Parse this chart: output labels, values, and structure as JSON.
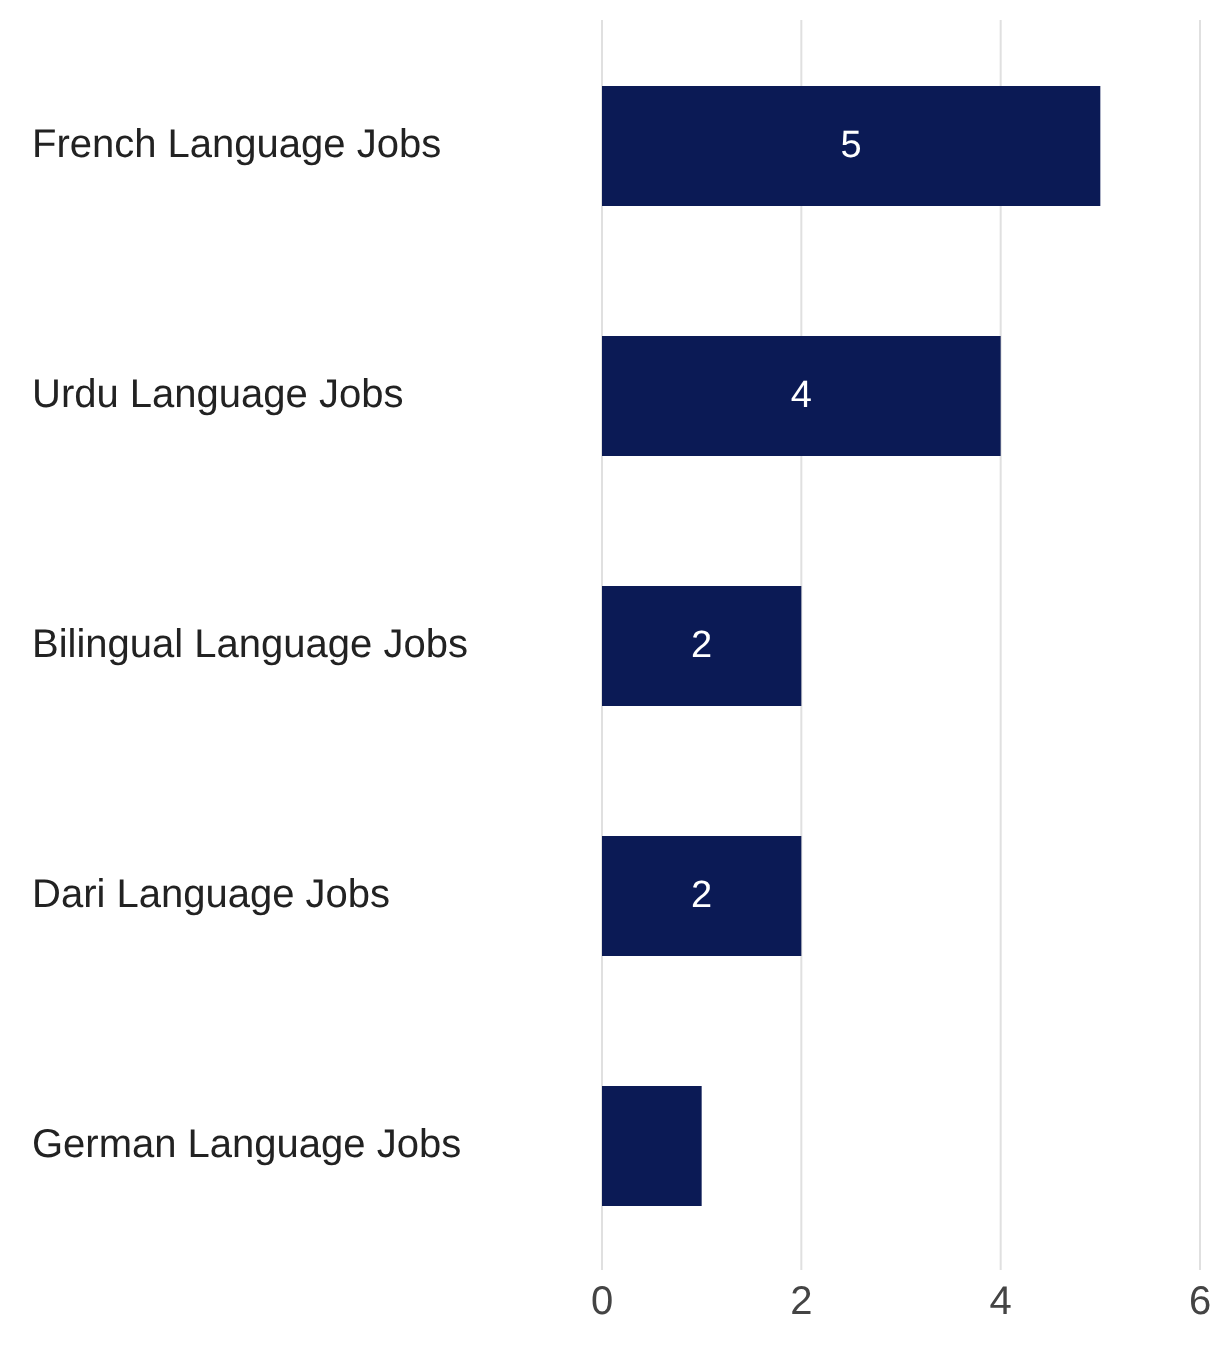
{
  "chart_data": {
    "type": "bar",
    "orientation": "horizontal",
    "categories": [
      "French Language Jobs",
      "Urdu Language Jobs",
      "Bilingual Language Jobs",
      "Dari Language Jobs",
      "German Language Jobs"
    ],
    "values": [
      5,
      4,
      2,
      2,
      1
    ],
    "color": "#0b1a55",
    "value_labels": [
      "5",
      "4",
      "2",
      "2",
      null
    ],
    "xlim": [
      0,
      6
    ],
    "xticks": [
      0,
      2,
      4,
      6
    ],
    "grid": "x",
    "legend": false
  }
}
